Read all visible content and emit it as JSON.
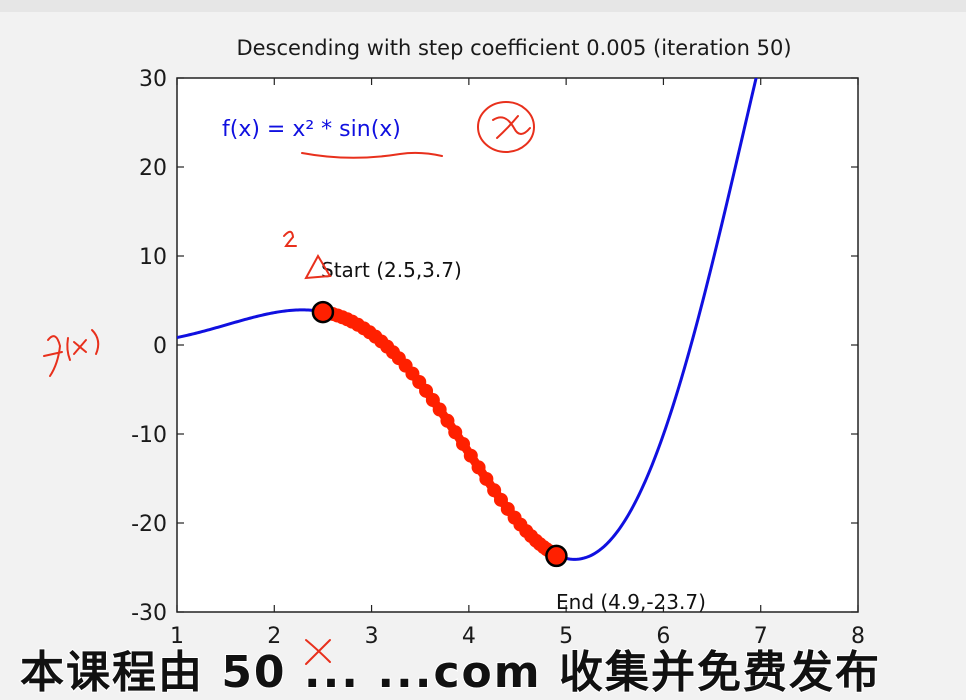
{
  "chart_data": {
    "type": "line",
    "title": "Descending with step coefficient 0.005 (iteration 50)",
    "xlim": [
      1,
      8
    ],
    "ylim": [
      -30,
      30
    ],
    "xticks": [
      "1",
      "2",
      "3",
      "4",
      "5",
      "6",
      "7",
      "8"
    ],
    "yticks": [
      "30",
      "20",
      "10",
      "0",
      "-10",
      "-20",
      "-30"
    ],
    "function_label": "f(x) = x² * sin(x)",
    "start_label": "Start (2.5,3.7)",
    "end_label": "End (4.9,-23.7)",
    "start": {
      "x": 2.5,
      "y": 3.7
    },
    "end": {
      "x": 4.9,
      "y": -23.7
    },
    "descent_x": [
      2.5,
      2.55,
      2.6,
      2.65,
      2.7,
      2.75,
      2.8,
      2.86,
      2.92,
      2.98,
      3.04,
      3.1,
      3.16,
      3.22,
      3.28,
      3.35,
      3.42,
      3.49,
      3.56,
      3.63,
      3.7,
      3.78,
      3.86,
      3.94,
      4.02,
      4.1,
      4.18,
      4.26,
      4.33,
      4.4,
      4.47,
      4.53,
      4.59,
      4.64,
      4.69,
      4.73,
      4.77,
      4.8,
      4.83,
      4.85,
      4.87,
      4.88,
      4.89,
      4.9
    ],
    "colors": {
      "curve": "#1010e0",
      "descent": "#ff2000",
      "marker_edge": "#000000",
      "text": "#1a1a1a"
    },
    "handwritten_annotations": [
      "x",
      "2",
      "f(x)",
      "x"
    ]
  },
  "caption": {
    "text": "本课程由 50 ... ...com 收集并免费发布",
    "color": "#111111"
  }
}
